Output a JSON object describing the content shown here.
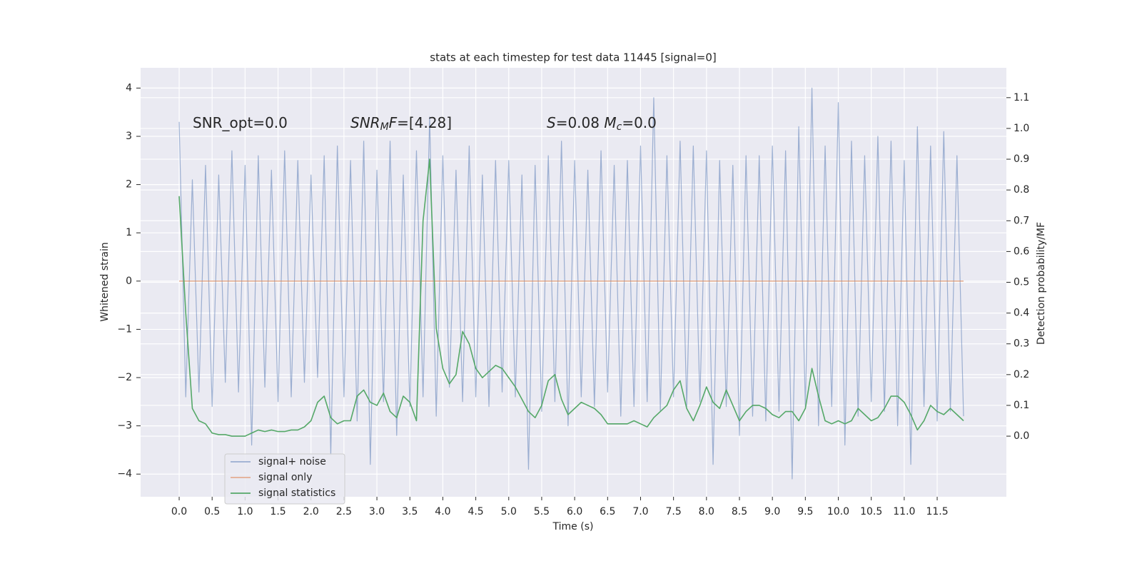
{
  "chart_data": {
    "type": "line",
    "title": "stats at each timestep for test data 11445 [signal=0]",
    "xlabel": "Time (s)",
    "ylabel": "Whitened strain",
    "y2label": "Detection probability/MF",
    "background": "#eaeaf2",
    "grid": true,
    "legend": "lower left",
    "annotations": [
      [
        {
          "text": "SNR_opt=0.0",
          "style": "normal"
        }
      ],
      [
        {
          "text": "SNR",
          "style": "italic"
        },
        {
          "text": "M",
          "style": "sub"
        },
        {
          "text": "F",
          "style": "italic"
        },
        {
          "text": "=[4.28]",
          "style": "normal"
        }
      ],
      [
        {
          "text": "S",
          "style": "italic"
        },
        {
          "text": "=0.08   ",
          "style": "normal"
        },
        {
          "text": "M",
          "style": "italic"
        },
        {
          "text": "c",
          "style": "sub"
        },
        {
          "text": "=0.0",
          "style": "normal"
        }
      ]
    ],
    "xlim": [
      -0.585,
      12.55
    ],
    "ylim": [
      -4.47,
      4.42
    ],
    "y2lim": [
      -0.197,
      1.197
    ],
    "xticks": [
      {
        "value": 0,
        "label": "0.0"
      },
      0.5,
      {
        "value": 1,
        "label": "1.0"
      },
      1.5,
      {
        "value": 2,
        "label": "2.0"
      },
      2.5,
      {
        "value": 3,
        "label": "3.0"
      },
      3.5,
      {
        "value": 4,
        "label": "4.0"
      },
      4.5,
      {
        "value": 5,
        "label": "5.0"
      },
      5.5,
      {
        "value": 6,
        "label": "6.0"
      },
      6.5,
      {
        "value": 7,
        "label": "7.0"
      },
      7.5,
      {
        "value": 8,
        "label": "8.0"
      },
      8.5,
      {
        "value": 9,
        "label": "9.0"
      },
      9.5,
      {
        "value": 10,
        "label": "10.0"
      },
      10.5,
      {
        "value": 11,
        "label": "11.0"
      },
      11.5
    ],
    "yticks": [
      {
        "value": -4,
        "label": "−4"
      },
      {
        "value": -3,
        "label": "−3"
      },
      {
        "value": -2,
        "label": "−2"
      },
      {
        "value": -1,
        "label": "−1"
      },
      0,
      1,
      2,
      3,
      4
    ],
    "y2ticks": [
      {
        "value": 0,
        "label": "0.0"
      },
      0.1,
      0.2,
      0.3,
      0.4,
      0.5,
      0.6,
      0.7,
      0.8,
      0.9,
      {
        "value": 1,
        "label": "1.0"
      },
      1.1
    ],
    "x": [
      0,
      0.1,
      0.2,
      0.3,
      0.4,
      0.5,
      0.6,
      0.7,
      0.8,
      0.9,
      1,
      1.1,
      1.2,
      1.3,
      1.4,
      1.5,
      1.6,
      1.7,
      1.8,
      1.9,
      2,
      2.1,
      2.2,
      2.3,
      2.4,
      2.5,
      2.6,
      2.7,
      2.8,
      2.9,
      3,
      3.1,
      3.2,
      3.3,
      3.4,
      3.5,
      3.6,
      3.7,
      3.8,
      3.9,
      4,
      4.1,
      4.2,
      4.3,
      4.4,
      4.5,
      4.6,
      4.7,
      4.8,
      4.9,
      5,
      5.1,
      5.2,
      5.3,
      5.4,
      5.5,
      5.6,
      5.7,
      5.8,
      5.9,
      6,
      6.1,
      6.2,
      6.3,
      6.4,
      6.5,
      6.6,
      6.7,
      6.8,
      6.9,
      7,
      7.1,
      7.2,
      7.3,
      7.4,
      7.5,
      7.6,
      7.7,
      7.8,
      7.9,
      8,
      8.1,
      8.2,
      8.3,
      8.4,
      8.5,
      8.6,
      8.7,
      8.8,
      8.9,
      9,
      9.1,
      9.2,
      9.3,
      9.4,
      9.5,
      9.6,
      9.7,
      9.8,
      9.9,
      10,
      10.1,
      10.2,
      10.3,
      10.4,
      10.5,
      10.6,
      10.7,
      10.8,
      10.9,
      11,
      11.1,
      11.2,
      11.3,
      11.4,
      11.5,
      11.6,
      11.7,
      11.8,
      11.9
    ],
    "series": [
      {
        "name": "signal+ noise",
        "color": "#4c72b0",
        "alpha": 0.5,
        "axis": "y",
        "values": [
          3.3,
          -2.4,
          2.1,
          -2.3,
          2.4,
          -2.6,
          2.2,
          -2.1,
          2.7,
          -2.3,
          2.4,
          -3.4,
          2.6,
          -2.2,
          2.3,
          -2.5,
          2.7,
          -2.4,
          2.5,
          -2.1,
          2.2,
          -2.0,
          2.6,
          -3.6,
          2.8,
          -2.4,
          2.5,
          -2.9,
          2.9,
          -3.8,
          2.3,
          -2.5,
          2.9,
          -3.2,
          2.2,
          -2.6,
          2.7,
          -2.4,
          3.4,
          -2.8,
          2.6,
          -2.2,
          2.3,
          -2.5,
          2.8,
          -2.4,
          2.2,
          -2.6,
          2.5,
          -2.3,
          2.5,
          -2.4,
          2.2,
          -3.9,
          2.4,
          -2.7,
          2.6,
          -2.5,
          2.9,
          -3.0,
          2.5,
          -2.4,
          2.3,
          -2.6,
          2.7,
          -2.3,
          2.4,
          -2.8,
          2.5,
          -2.6,
          2.8,
          -2.5,
          3.8,
          -2.7,
          2.6,
          -2.4,
          2.9,
          -2.6,
          2.8,
          -2.5,
          2.7,
          -3.8,
          2.5,
          -2.6,
          2.4,
          -3.2,
          2.6,
          -2.8,
          2.6,
          -2.9,
          2.8,
          -2.7,
          2.7,
          -4.1,
          3.2,
          -2.6,
          4.0,
          -3.0,
          2.8,
          -2.6,
          3.7,
          -3.4,
          2.9,
          -2.8,
          2.6,
          -2.5,
          3.0,
          -2.7,
          2.9,
          -3.0,
          2.5,
          -3.8,
          3.2,
          -2.6,
          2.8,
          -2.9,
          3.1,
          -2.7,
          2.6,
          -2.8
        ]
      },
      {
        "name": "signal only",
        "color": "#dd8452",
        "alpha": 0.6,
        "axis": "y",
        "values": [
          0,
          0,
          0,
          0,
          0,
          0,
          0,
          0,
          0,
          0,
          0,
          0,
          0,
          0,
          0,
          0,
          0,
          0,
          0,
          0,
          0,
          0,
          0,
          0,
          0,
          0,
          0,
          0,
          0,
          0,
          0,
          0,
          0,
          0,
          0,
          0,
          0,
          0,
          0,
          0,
          0,
          0,
          0,
          0,
          0,
          0,
          0,
          0,
          0,
          0,
          0,
          0,
          0,
          0,
          0,
          0,
          0,
          0,
          0,
          0,
          0,
          0,
          0,
          0,
          0,
          0,
          0,
          0,
          0,
          0,
          0,
          0,
          0,
          0,
          0,
          0,
          0,
          0,
          0,
          0,
          0,
          0,
          0,
          0,
          0,
          0,
          0,
          0,
          0,
          0,
          0,
          0,
          0,
          0,
          0,
          0,
          0,
          0,
          0,
          0,
          0,
          0,
          0,
          0,
          0,
          0,
          0,
          0,
          0,
          0,
          0,
          0,
          0,
          0,
          0,
          0,
          0,
          0,
          0,
          0
        ]
      },
      {
        "name": "signal statistics",
        "color": "#55a868",
        "alpha": 1,
        "axis": "y2",
        "values": [
          0.78,
          0.4,
          0.09,
          0.05,
          0.04,
          0.01,
          0.005,
          0.005,
          0,
          0,
          0,
          0.01,
          0.02,
          0.015,
          0.02,
          0.015,
          0.015,
          0.02,
          0.02,
          0.03,
          0.05,
          0.11,
          0.13,
          0.06,
          0.04,
          0.05,
          0.05,
          0.13,
          0.15,
          0.11,
          0.1,
          0.14,
          0.08,
          0.06,
          0.13,
          0.11,
          0.05,
          0.7,
          0.9,
          0.35,
          0.22,
          0.17,
          0.2,
          0.34,
          0.3,
          0.22,
          0.19,
          0.21,
          0.23,
          0.22,
          0.19,
          0.16,
          0.12,
          0.08,
          0.06,
          0.1,
          0.18,
          0.2,
          0.12,
          0.07,
          0.09,
          0.11,
          0.1,
          0.09,
          0.07,
          0.04,
          0.04,
          0.04,
          0.04,
          0.05,
          0.04,
          0.03,
          0.06,
          0.08,
          0.1,
          0.15,
          0.18,
          0.09,
          0.05,
          0.1,
          0.16,
          0.11,
          0.09,
          0.15,
          0.1,
          0.05,
          0.08,
          0.1,
          0.1,
          0.09,
          0.07,
          0.06,
          0.08,
          0.08,
          0.05,
          0.09,
          0.22,
          0.13,
          0.05,
          0.04,
          0.05,
          0.04,
          0.05,
          0.09,
          0.07,
          0.05,
          0.06,
          0.09,
          0.13,
          0.13,
          0.11,
          0.07,
          0.02,
          0.05,
          0.1,
          0.08,
          0.07,
          0.09,
          0.07,
          0.05
        ]
      }
    ]
  }
}
